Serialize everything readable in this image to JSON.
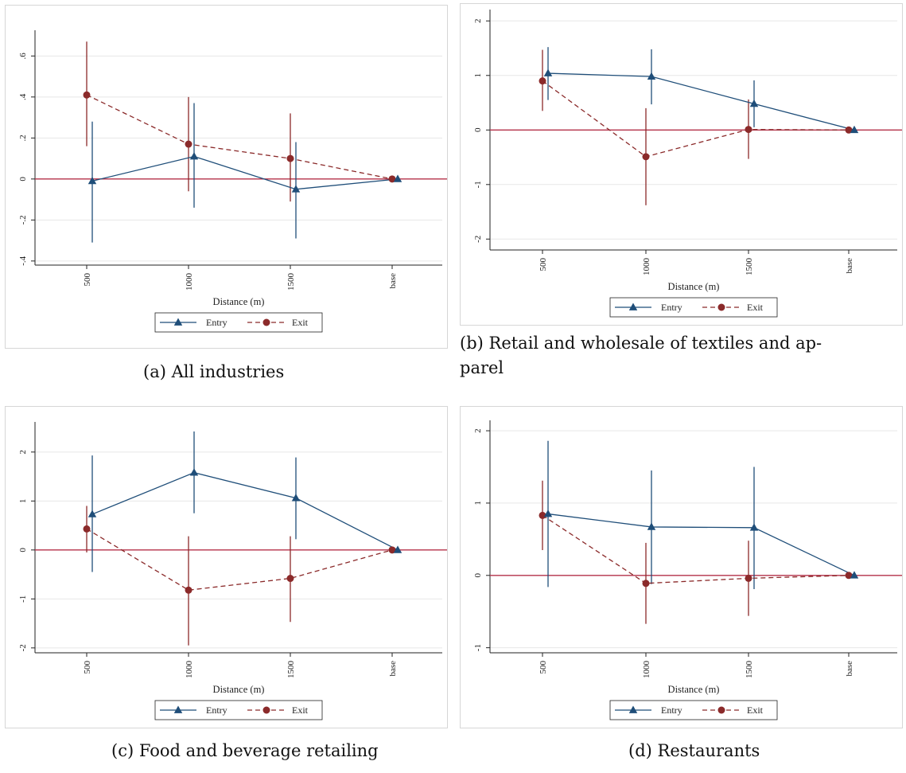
{
  "figure_captions": [
    "(a) All industries",
    "(b) Retail and wholesale of textiles and apparel",
    "(c) Food and beverage retailing",
    "(d) Restaurants"
  ],
  "caption_b_lines": [
    "(b) Retail and wholesale of textiles and ap-",
    "parel"
  ],
  "colors": {
    "entry": "#1f4e79",
    "exit": "#8b2a2a",
    "zero_line": "#b5324a",
    "grid": "#e7e7e7",
    "frame": "#d6d6d6",
    "axis": "#222222"
  },
  "legend": {
    "entry": "Entry",
    "exit": "Exit"
  },
  "chart_data": [
    {
      "type": "line",
      "caption": "(a) All industries",
      "xlabel": "Distance (m)",
      "categories": [
        "500",
        "1000",
        "1500",
        "base"
      ],
      "yticks": [
        -0.4,
        -0.2,
        0,
        0.2,
        0.4,
        0.6
      ],
      "ytick_labels": [
        "-.4",
        "-.2",
        "0",
        ".2",
        ".4",
        ".6"
      ],
      "ylim": [
        -0.42,
        0.71
      ],
      "legend_position": "bottom",
      "series": [
        {
          "name": "Entry",
          "values": [
            -0.01,
            0.11,
            -0.05,
            0.0
          ],
          "ci_low": [
            -0.31,
            -0.14,
            -0.29,
            null
          ],
          "ci_high": [
            0.28,
            0.37,
            0.18,
            null
          ]
        },
        {
          "name": "Exit",
          "values": [
            0.41,
            0.17,
            0.1,
            0.0
          ],
          "ci_low": [
            0.16,
            -0.06,
            -0.11,
            null
          ],
          "ci_high": [
            0.67,
            0.4,
            0.32,
            null
          ]
        }
      ]
    },
    {
      "type": "line",
      "caption": "(b) Retail and wholesale of textiles and apparel",
      "xlabel": "Distance (m)",
      "categories": [
        "500",
        "1000",
        "1500",
        "base"
      ],
      "yticks": [
        -2,
        -1,
        0,
        1,
        2
      ],
      "ytick_labels": [
        "-2",
        "-1",
        "0",
        "1",
        "2"
      ],
      "ylim": [
        -2.2,
        2.15
      ],
      "legend_position": "bottom",
      "series": [
        {
          "name": "Entry",
          "values": [
            1.04,
            0.98,
            0.48,
            0.0
          ],
          "ci_low": [
            0.55,
            0.47,
            0.05,
            null
          ],
          "ci_high": [
            1.52,
            1.48,
            0.91,
            null
          ]
        },
        {
          "name": "Exit",
          "values": [
            0.9,
            -0.49,
            0.01,
            0.0
          ],
          "ci_low": [
            0.35,
            -1.38,
            -0.53,
            null
          ],
          "ci_high": [
            1.47,
            0.4,
            0.56,
            null
          ]
        }
      ]
    },
    {
      "type": "line",
      "caption": "(c) Food and beverage retailing",
      "xlabel": "Distance (m)",
      "categories": [
        "500",
        "1000",
        "1500",
        "base"
      ],
      "yticks": [
        -2,
        -1,
        0,
        1,
        2
      ],
      "ytick_labels": [
        "-2",
        "-1",
        "0",
        "1",
        "2"
      ],
      "ylim": [
        -2.1,
        2.55
      ],
      "legend_position": "bottom",
      "series": [
        {
          "name": "Entry",
          "values": [
            0.73,
            1.58,
            1.06,
            0.0
          ],
          "ci_low": [
            -0.45,
            0.75,
            0.22,
            null
          ],
          "ci_high": [
            1.93,
            2.42,
            1.89,
            null
          ]
        },
        {
          "name": "Exit",
          "values": [
            0.43,
            -0.82,
            -0.58,
            0.0
          ],
          "ci_low": [
            -0.05,
            -1.95,
            -1.47,
            null
          ],
          "ci_high": [
            0.9,
            0.28,
            0.28,
            null
          ]
        }
      ]
    },
    {
      "type": "line",
      "caption": "(d) Restaurants",
      "xlabel": "Distance (m)",
      "categories": [
        "500",
        "1000",
        "1500",
        "base"
      ],
      "yticks": [
        -1,
        0,
        1,
        2
      ],
      "ytick_labels": [
        "-1",
        "0",
        "1",
        "2"
      ],
      "ylim": [
        -1.07,
        2.1
      ],
      "legend_position": "bottom",
      "series": [
        {
          "name": "Entry",
          "values": [
            0.85,
            0.67,
            0.66,
            0.0
          ],
          "ci_low": [
            -0.16,
            -0.12,
            -0.19,
            null
          ],
          "ci_high": [
            1.86,
            1.45,
            1.5,
            null
          ]
        },
        {
          "name": "Exit",
          "values": [
            0.83,
            -0.11,
            -0.04,
            0.0
          ],
          "ci_low": [
            0.35,
            -0.67,
            -0.56,
            null
          ],
          "ci_high": [
            1.31,
            0.45,
            0.48,
            null
          ]
        }
      ]
    }
  ]
}
